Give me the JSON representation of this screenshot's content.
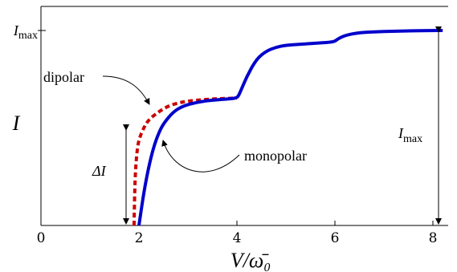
{
  "chart_data": {
    "type": "line",
    "title": "",
    "xlabel": "V/ω̄₀",
    "ylabel": "I",
    "xlim": [
      0,
      8.5
    ],
    "ylim": [
      0,
      1.05
    ],
    "x_ticks": [
      0,
      2,
      4,
      6,
      8
    ],
    "y_tick_label": "I_max",
    "grid": false,
    "colors": {
      "monopolar": "#0000cc",
      "dipolar": "#cc0000"
    },
    "series": [
      {
        "name": "monopolar",
        "style": "solid",
        "x": [
          2.0,
          2.1,
          2.2,
          2.3,
          2.4,
          2.5,
          2.7,
          2.9,
          3.2,
          3.5,
          3.8,
          4.0,
          4.05,
          4.2,
          4.4,
          4.6,
          4.8,
          5.0,
          5.3,
          5.6,
          5.9,
          6.0,
          6.05,
          6.2,
          6.5,
          7.0,
          7.5,
          8.0,
          8.2
        ],
        "y": [
          0.0,
          0.17,
          0.3,
          0.4,
          0.47,
          0.52,
          0.58,
          0.61,
          0.63,
          0.64,
          0.645,
          0.65,
          0.67,
          0.76,
          0.85,
          0.89,
          0.91,
          0.92,
          0.925,
          0.93,
          0.935,
          0.94,
          0.95,
          0.97,
          0.985,
          0.99,
          0.993,
          0.995,
          0.995
        ]
      },
      {
        "name": "dipolar",
        "style": "dashed",
        "x": [
          1.9,
          1.92,
          1.96,
          2.0,
          2.1,
          2.2,
          2.4,
          2.6,
          2.8,
          3.0,
          3.3,
          3.6,
          4.0
        ],
        "y": [
          0.0,
          0.25,
          0.38,
          0.44,
          0.5,
          0.54,
          0.58,
          0.61,
          0.625,
          0.635,
          0.642,
          0.647,
          0.65
        ]
      }
    ],
    "annotations": [
      {
        "name": "dipolar-label",
        "text": "dipolar"
      },
      {
        "name": "monopolar-label",
        "text": "monopolar"
      },
      {
        "name": "delta-i-label",
        "text": "ΔI"
      },
      {
        "name": "imax-label",
        "text": "I",
        "sub": "max"
      }
    ]
  }
}
